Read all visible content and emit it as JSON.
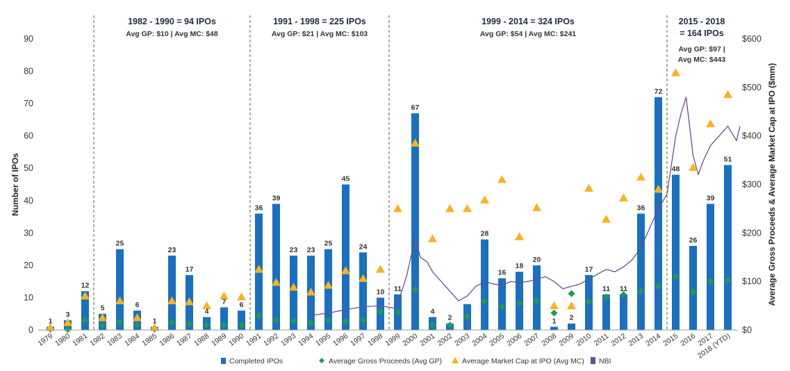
{
  "chart_data": {
    "type": "bar",
    "categories": [
      "1979",
      "1980",
      "1981",
      "1982",
      "1983",
      "1984",
      "1985",
      "1986",
      "1987",
      "1988",
      "1989",
      "1990",
      "1991",
      "1992",
      "1993",
      "1994",
      "1995",
      "1996",
      "1997",
      "1998",
      "1999",
      "2000",
      "2001",
      "2002",
      "2003",
      "2004",
      "2005",
      "2006",
      "2007",
      "2008",
      "2009",
      "2010",
      "2011",
      "2012",
      "2013",
      "2014",
      "2015",
      "2016",
      "2017",
      "2018 (YTD)"
    ],
    "ylabel": "Number of IPOs",
    "y2label": "Average Gross Proceeds & Average Market Cap at IPO ($mm)",
    "ylim": [
      0,
      90
    ],
    "y2lim": [
      0,
      600
    ],
    "yticks": [
      "0",
      "10",
      "20",
      "30",
      "40",
      "50",
      "60",
      "70",
      "80",
      "90"
    ],
    "y2ticks": [
      "$0",
      "$100",
      "$200",
      "$300",
      "$400",
      "$500",
      "$600"
    ],
    "grid": false,
    "legend_position": "bottom",
    "series": [
      {
        "name": "Completed IPOs",
        "kind": "bar",
        "axis": "left",
        "color": "#1a6fc0",
        "values": [
          1,
          3,
          12,
          5,
          25,
          6,
          1,
          23,
          17,
          4,
          7,
          6,
          36,
          39,
          23,
          23,
          25,
          45,
          24,
          10,
          11,
          67,
          4,
          2,
          8,
          28,
          16,
          18,
          20,
          1,
          2,
          17,
          11,
          11,
          36,
          72,
          48,
          26,
          39,
          51
        ],
        "labels": [
          "1",
          "3",
          "12",
          "5",
          "25",
          "6",
          "1",
          "23",
          "17",
          "4",
          "7",
          "6",
          "36",
          "39",
          "23",
          "23",
          "25",
          "45",
          "24",
          "10",
          "11",
          "67",
          "4",
          "2",
          "",
          "28",
          "16",
          "18",
          "20",
          "1",
          "2",
          "17",
          "11",
          "11",
          "36",
          "72",
          "48",
          "26",
          "39",
          "51"
        ]
      },
      {
        "name": "Average Gross Proceeds (Avg GP)",
        "kind": "marker",
        "marker": "diamond",
        "axis": "right",
        "color": "#1e9a5a",
        "values": [
          2,
          1,
          20,
          10,
          16,
          10,
          2,
          16,
          12,
          10,
          10,
          10,
          30,
          20,
          18,
          15,
          20,
          18,
          20,
          38,
          36,
          83,
          10,
          10,
          28,
          60,
          48,
          55,
          60,
          35,
          75,
          58,
          68,
          73,
          80,
          90,
          110,
          78,
          100,
          102
        ]
      },
      {
        "name": "Average Market Cap at IPO (Avg MC)",
        "kind": "marker",
        "marker": "triangle",
        "axis": "right",
        "color": "#f5b324",
        "values": [
          5,
          15,
          70,
          25,
          60,
          25,
          5,
          60,
          58,
          50,
          70,
          68,
          125,
          98,
          88,
          78,
          92,
          122,
          106,
          125,
          250,
          385,
          188,
          250,
          250,
          268,
          310,
          192,
          252,
          50,
          50,
          292,
          228,
          272,
          315,
          290,
          530,
          335,
          425,
          485
        ]
      },
      {
        "name": "NBI",
        "kind": "line",
        "axis": "right",
        "color": "#6a4c93",
        "start_year": 1994,
        "end_year": 2018.7,
        "points": [
          [
            1994,
            30
          ],
          [
            1995,
            35
          ],
          [
            1996,
            42
          ],
          [
            1997,
            48
          ],
          [
            1998,
            50
          ],
          [
            1998.8,
            45
          ],
          [
            1999,
            55
          ],
          [
            1999.5,
            110
          ],
          [
            2000,
            190
          ],
          [
            2000.3,
            150
          ],
          [
            2000.7,
            140
          ],
          [
            2001,
            120
          ],
          [
            2001.5,
            100
          ],
          [
            2002,
            80
          ],
          [
            2002.5,
            60
          ],
          [
            2003,
            70
          ],
          [
            2003.5,
            90
          ],
          [
            2004,
            100
          ],
          [
            2004.5,
            95
          ],
          [
            2005,
            92
          ],
          [
            2005.5,
            100
          ],
          [
            2006,
            98
          ],
          [
            2006.5,
            100
          ],
          [
            2007,
            105
          ],
          [
            2007.5,
            110
          ],
          [
            2008,
            100
          ],
          [
            2008.5,
            85
          ],
          [
            2009,
            90
          ],
          [
            2009.5,
            95
          ],
          [
            2010,
            105
          ],
          [
            2010.5,
            115
          ],
          [
            2011,
            125
          ],
          [
            2011.5,
            120
          ],
          [
            2012,
            130
          ],
          [
            2012.5,
            145
          ],
          [
            2013,
            170
          ],
          [
            2013.5,
            210
          ],
          [
            2014,
            250
          ],
          [
            2014.5,
            280
          ],
          [
            2015,
            400
          ],
          [
            2015.3,
            445
          ],
          [
            2015.6,
            480
          ],
          [
            2015.8,
            420
          ],
          [
            2016,
            360
          ],
          [
            2016.3,
            320
          ],
          [
            2016.6,
            350
          ],
          [
            2017,
            380
          ],
          [
            2017.5,
            400
          ],
          [
            2018,
            420
          ],
          [
            2018.5,
            390
          ],
          [
            2018.7,
            420
          ]
        ]
      }
    ],
    "periods": [
      {
        "title": "1982 - 1990 = 94 IPOs",
        "subtitle": "Avg GP: $10 | Avg MC: $48",
        "start_index": 3,
        "end_index": 11
      },
      {
        "title": "1991 - 1998 = 225 IPOs",
        "subtitle": "Avg GP: $21 | Avg MC: $103",
        "start_index": 12,
        "end_index": 19
      },
      {
        "title": "1999 - 2014 = 324 IPOs",
        "subtitle": "Avg GP: $54 | Avg MC: $241",
        "start_index": 20,
        "end_index": 35
      },
      {
        "title_lines": [
          "2015 - 2018",
          "= 164 IPOs"
        ],
        "subtitle_lines": [
          "Avg GP: $97 |",
          "Avg MC: $443"
        ],
        "start_index": 36,
        "end_index": 39
      }
    ]
  }
}
